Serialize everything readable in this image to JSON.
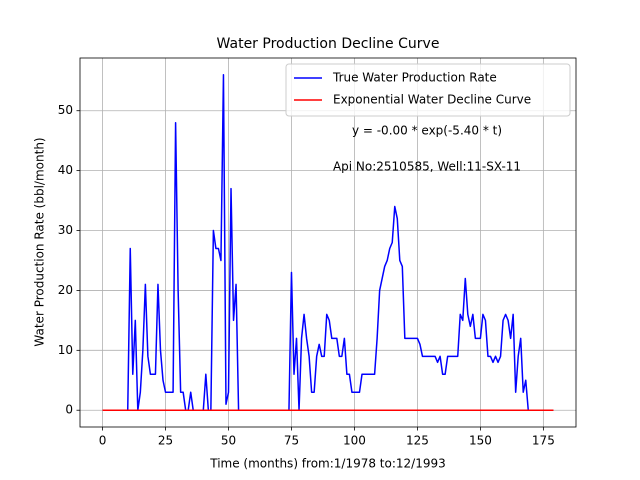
{
  "chart_data": {
    "type": "line",
    "title": "Water Production Decline Curve",
    "xlabel": "Time (months) from:1/1978 to:12/1993",
    "ylabel": "Water Production Rate (bbl/month)",
    "annotations": [
      "y = -0.00 * exp(-5.40 * t)",
      "Api No:2510585, Well:11-SX-11"
    ],
    "x": [
      0,
      1,
      2,
      3,
      4,
      5,
      6,
      7,
      8,
      9,
      10,
      11,
      12,
      13,
      14,
      15,
      16,
      17,
      18,
      19,
      20,
      21,
      22,
      23,
      24,
      25,
      26,
      27,
      28,
      29,
      30,
      31,
      32,
      33,
      34,
      35,
      36,
      37,
      38,
      39,
      40,
      41,
      42,
      43,
      44,
      45,
      46,
      47,
      48,
      49,
      50,
      51,
      52,
      53,
      54,
      55,
      56,
      57,
      58,
      59,
      60,
      61,
      62,
      63,
      64,
      65,
      66,
      67,
      68,
      69,
      70,
      71,
      72,
      73,
      74,
      75,
      76,
      77,
      78,
      79,
      80,
      81,
      82,
      83,
      84,
      85,
      86,
      87,
      88,
      89,
      90,
      91,
      92,
      93,
      94,
      95,
      96,
      97,
      98,
      99,
      100,
      101,
      102,
      103,
      104,
      105,
      106,
      107,
      108,
      109,
      110,
      111,
      112,
      113,
      114,
      115,
      116,
      117,
      118,
      119,
      120,
      121,
      122,
      123,
      124,
      125,
      126,
      127,
      128,
      129,
      130,
      131,
      132,
      133,
      134,
      135,
      136,
      137,
      138,
      139,
      140,
      141,
      142,
      143,
      144,
      145,
      146,
      147,
      148,
      149,
      150,
      151,
      152,
      153,
      154,
      155,
      156,
      157,
      158,
      159,
      160,
      161,
      162,
      163,
      164,
      165,
      166,
      167,
      168,
      169,
      170,
      171,
      172,
      173,
      174,
      175,
      176,
      177,
      178,
      179
    ],
    "series": [
      {
        "name": "True Water Production Rate",
        "color": "#0000ff",
        "values": [
          0,
          0,
          0,
          0,
          0,
          0,
          0,
          0,
          0,
          0,
          0,
          27,
          6,
          15,
          0,
          3,
          10,
          21,
          9,
          6,
          6,
          6,
          21,
          10,
          5,
          3,
          3,
          3,
          3,
          48,
          20,
          3,
          3,
          0,
          0,
          3,
          0,
          0,
          0,
          0,
          0,
          6,
          0,
          0,
          30,
          27,
          27,
          25,
          56,
          1,
          3,
          37,
          15,
          21,
          0,
          0,
          0,
          0,
          0,
          0,
          0,
          0,
          0,
          0,
          0,
          0,
          0,
          0,
          0,
          0,
          0,
          0,
          0,
          0,
          0,
          23,
          6,
          12,
          0,
          12,
          16,
          12,
          9,
          3,
          3,
          9,
          11,
          9,
          9,
          16,
          15,
          12,
          12,
          12,
          9,
          9,
          12,
          6,
          6,
          3,
          3,
          3,
          3,
          6,
          6,
          6,
          6,
          6,
          6,
          12,
          20,
          22,
          24,
          25,
          27,
          28,
          34,
          32,
          25,
          24,
          12,
          12,
          12,
          12,
          12,
          12,
          11,
          9,
          9,
          9,
          9,
          9,
          9,
          8,
          9,
          6,
          6,
          9,
          9,
          9,
          9,
          9,
          16,
          15,
          22,
          16,
          14,
          16,
          12,
          12,
          12,
          16,
          15,
          9,
          9,
          8,
          9,
          8,
          9,
          15,
          16,
          15,
          12,
          16,
          3,
          9,
          12,
          3,
          5,
          0,
          0,
          0,
          0,
          0,
          0,
          0,
          0,
          0,
          0,
          0
        ]
      },
      {
        "name": "Exponential Water Decline Curve",
        "color": "#ff0000",
        "values": [
          0,
          0,
          0,
          0,
          0,
          0,
          0,
          0,
          0,
          0,
          0,
          0,
          0,
          0,
          0,
          0,
          0,
          0,
          0,
          0,
          0,
          0,
          0,
          0,
          0,
          0,
          0,
          0,
          0,
          0,
          0,
          0,
          0,
          0,
          0,
          0,
          0,
          0,
          0,
          0,
          0,
          0,
          0,
          0,
          0,
          0,
          0,
          0,
          0,
          0,
          0,
          0,
          0,
          0,
          0,
          0,
          0,
          0,
          0,
          0,
          0,
          0,
          0,
          0,
          0,
          0,
          0,
          0,
          0,
          0,
          0,
          0,
          0,
          0,
          0,
          0,
          0,
          0,
          0,
          0,
          0,
          0,
          0,
          0,
          0,
          0,
          0,
          0,
          0,
          0,
          0,
          0,
          0,
          0,
          0,
          0,
          0,
          0,
          0,
          0,
          0,
          0,
          0,
          0,
          0,
          0,
          0,
          0,
          0,
          0,
          0,
          0,
          0,
          0,
          0,
          0,
          0,
          0,
          0,
          0,
          0,
          0,
          0,
          0,
          0,
          0,
          0,
          0,
          0,
          0,
          0,
          0,
          0,
          0,
          0,
          0,
          0,
          0,
          0,
          0,
          0,
          0,
          0,
          0,
          0,
          0,
          0,
          0,
          0,
          0,
          0,
          0,
          0,
          0,
          0,
          0,
          0,
          0,
          0,
          0,
          0,
          0,
          0,
          0,
          0,
          0,
          0,
          0,
          0,
          0,
          0,
          0,
          0,
          0,
          0,
          0,
          0,
          0,
          0,
          0
        ]
      }
    ],
    "xlim": [
      -8.95,
      187.95
    ],
    "xticks": [
      0,
      25,
      50,
      75,
      100,
      125,
      150,
      175
    ],
    "ylim": [
      -2.8,
      58.8
    ],
    "yticks": [
      0,
      10,
      20,
      30,
      40,
      50
    ],
    "grid": true,
    "legend": "upper right"
  }
}
